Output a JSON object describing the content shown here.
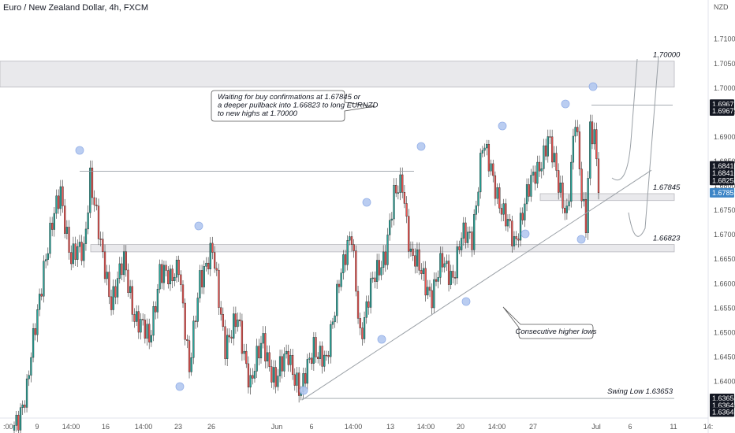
{
  "header": {
    "symbol_title": "Euro / New Zealand Dollar, 4h, FXCM",
    "currency": "NZD"
  },
  "chart_data": {
    "type": "candlestick",
    "title": "Euro / New Zealand Dollar, 4h, FXCM",
    "y_axis": {
      "ticks": [
        "1.71000",
        "1.70500",
        "1.70000",
        "1.69500",
        "1.69000",
        "1.68500",
        "1.68000",
        "1.67500",
        "1.67000",
        "1.66500",
        "1.66000",
        "1.65500",
        "1.65000",
        "1.64500",
        "1.64000",
        "1.63500"
      ],
      "range": [
        1.6338,
        1.7135
      ]
    },
    "x_axis": {
      "ticks": [
        ":00",
        "9",
        "14:00",
        "16",
        "14:00",
        "23",
        "26",
        "Jun",
        "6",
        "14:00",
        "13",
        "14:00",
        "20",
        "14:00",
        "27",
        "Jul",
        "6",
        "11",
        "14:"
      ]
    },
    "price_tags": [
      {
        "label": "1.69671",
        "value": 1.69671,
        "color": "#131722"
      },
      {
        "label": "1.69671",
        "value": 1.69531,
        "color": "#131722"
      },
      {
        "label": "1.68410",
        "value": 1.6841,
        "color": "#131722"
      },
      {
        "label": "1.68410",
        "value": 1.6826,
        "color": "#131722"
      },
      {
        "label": "1.68251",
        "value": 1.6811,
        "color": "#131722"
      },
      {
        "label": "1.67859",
        "value": 1.67859,
        "color": "#3d85c6"
      },
      {
        "label": "1.63653",
        "value": 1.63653,
        "color": "#131722"
      },
      {
        "label": "1.63645",
        "value": 1.63513,
        "color": "#131722"
      },
      {
        "label": "1.63645",
        "value": 1.63373,
        "color": "#131722"
      }
    ],
    "zones": [
      {
        "label": "1.70000",
        "top": 1.7055,
        "bottom": 1.7002
      },
      {
        "label": "1.67845",
        "top": 1.6784,
        "bottom": 1.677
      },
      {
        "label": "1.66823",
        "top": 1.668,
        "bottom": 1.6665
      }
    ],
    "annotations": {
      "callout_lines": [
        "Waiting for buy confirmations at 1.67845 or",
        "a deeper pullback into 1.66823 to long EURNZD",
        "to new highs at 1.70000"
      ],
      "higher_lows": "Consecutive higher lows",
      "swing_low": "Swing Low 1.63653"
    },
    "levels": {
      "prior_high": 1.683,
      "recent_high": 1.6965,
      "swing_low": 1.63653
    },
    "close": 1.67859,
    "colors": {
      "up": "#26a69a",
      "down": "#ef5350",
      "trend": "#9aa0a6",
      "marker": "#b3c8f0"
    }
  }
}
